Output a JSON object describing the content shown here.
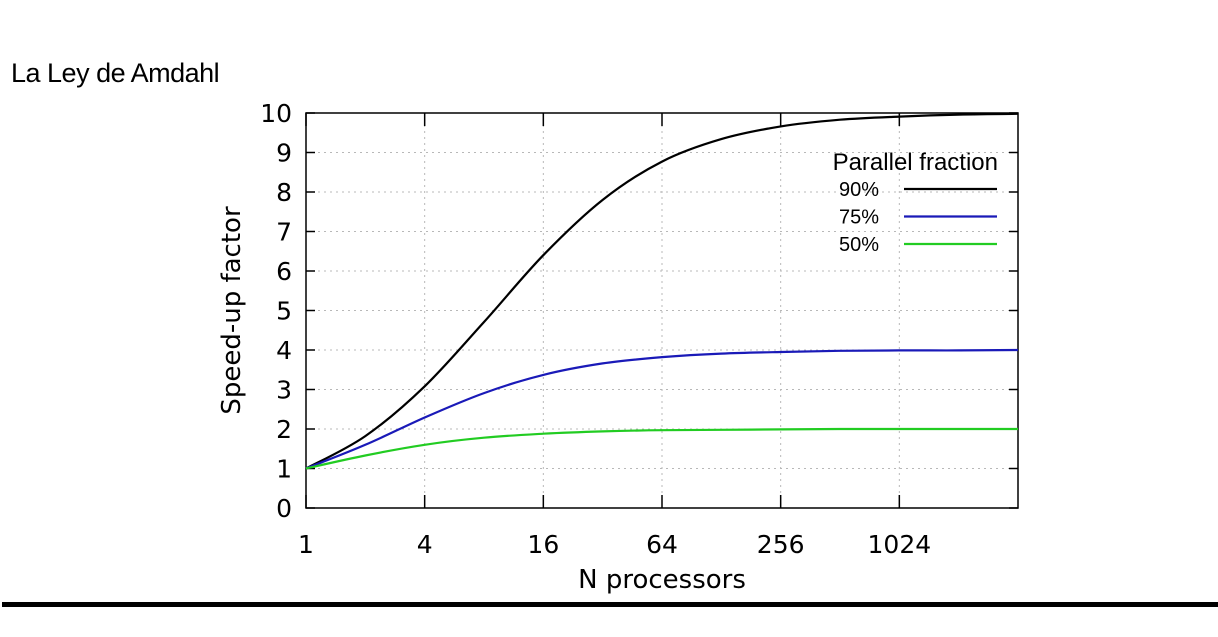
{
  "slide": {
    "title": "La Ley de Amdahl"
  },
  "chart_data": {
    "type": "line",
    "xlabel": "N processors",
    "ylabel": "Speed-up factor",
    "x_scale": "log2",
    "xlim": [
      1,
      4096
    ],
    "ylim": [
      0,
      10
    ],
    "x_ticks": [
      1,
      4,
      16,
      64,
      256,
      1024
    ],
    "x_tick_labels": [
      "1",
      "4",
      "16",
      "64",
      "256",
      "1024"
    ],
    "y_ticks": [
      0,
      1,
      2,
      3,
      4,
      5,
      6,
      7,
      8,
      9,
      10
    ],
    "y_tick_labels": [
      "0",
      "1",
      "2",
      "3",
      "4",
      "5",
      "6",
      "7",
      "8",
      "9",
      "10"
    ],
    "grid": true,
    "legend": {
      "title": "Parallel fraction",
      "position": "top-right"
    },
    "series": [
      {
        "name": "90%",
        "color": "#000000",
        "x": [
          1,
          2,
          4,
          8,
          16,
          32,
          64,
          128,
          256,
          512,
          1024,
          2048,
          4096
        ],
        "values": [
          1.0,
          1.82,
          3.08,
          4.71,
          6.4,
          7.8,
          8.77,
          9.34,
          9.66,
          9.83,
          9.91,
          9.96,
          9.98
        ]
      },
      {
        "name": "75%",
        "color": "#1a1ab8",
        "x": [
          1,
          2,
          4,
          8,
          16,
          32,
          64,
          128,
          256,
          512,
          1024,
          2048,
          4096
        ],
        "values": [
          1.0,
          1.6,
          2.29,
          2.91,
          3.37,
          3.66,
          3.82,
          3.91,
          3.95,
          3.98,
          3.99,
          3.99,
          4.0
        ]
      },
      {
        "name": "50%",
        "color": "#22cc22",
        "x": [
          1,
          2,
          4,
          8,
          16,
          32,
          64,
          128,
          256,
          512,
          1024,
          2048,
          4096
        ],
        "values": [
          1.0,
          1.33,
          1.6,
          1.78,
          1.88,
          1.94,
          1.97,
          1.98,
          1.99,
          2.0,
          2.0,
          2.0,
          2.0
        ]
      }
    ]
  }
}
